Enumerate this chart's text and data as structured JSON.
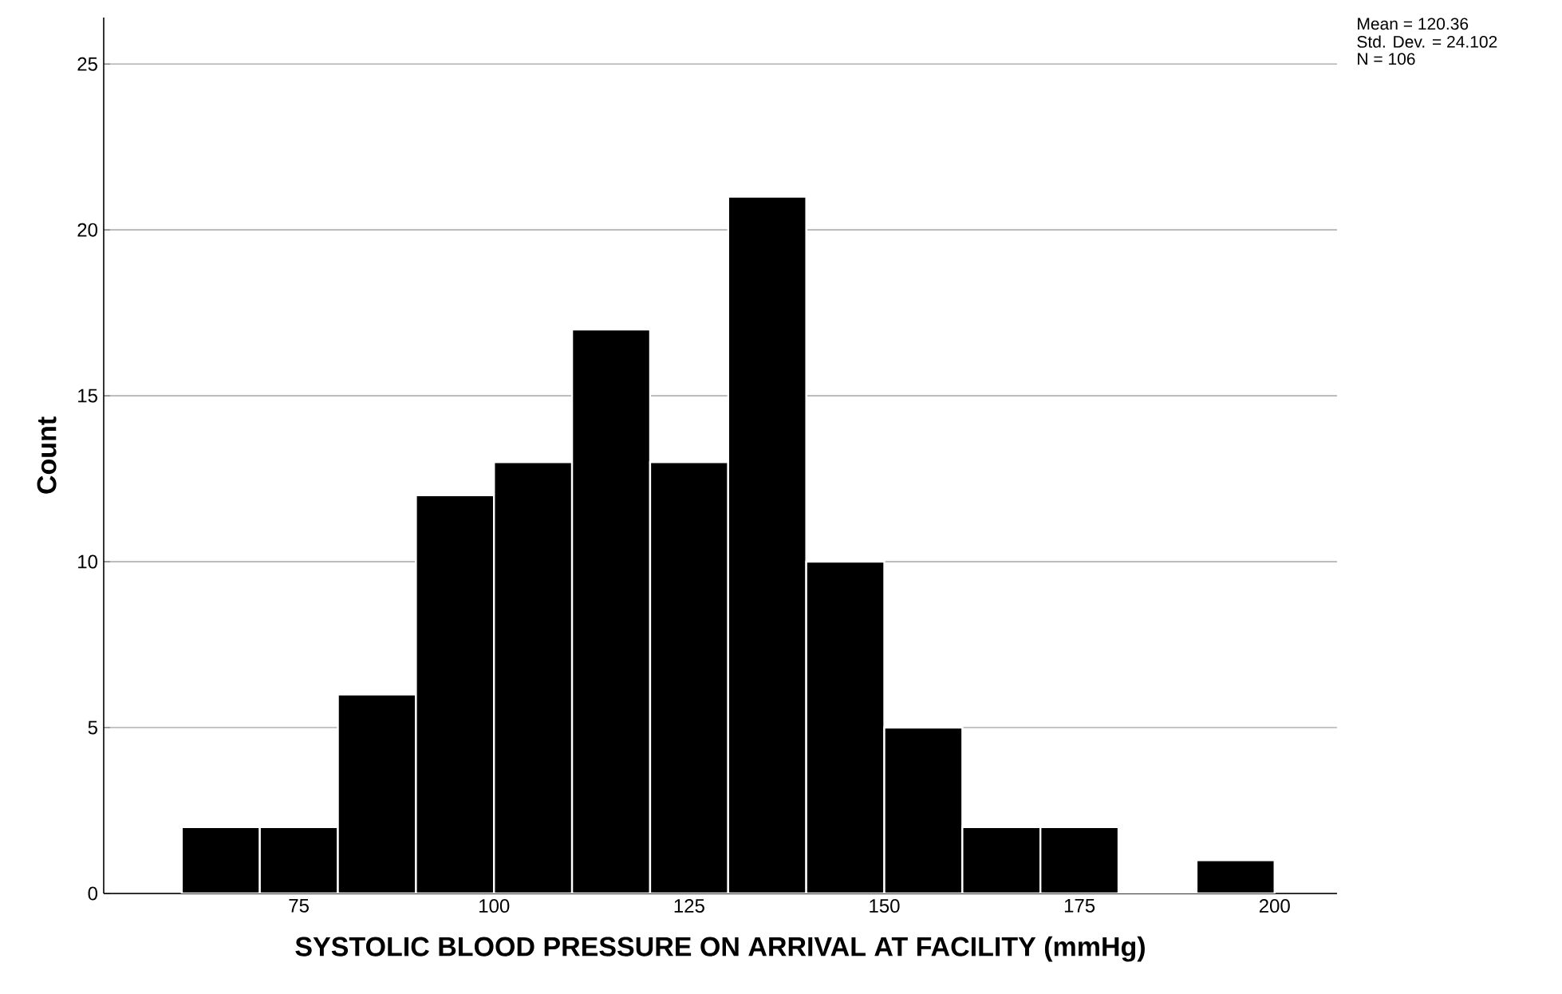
{
  "chart_data": {
    "type": "histogram",
    "xlabel": "SYSTOLIC BLOOD PRESSURE ON ARRIVAL AT FACILITY (mmHg)",
    "ylabel": "Count",
    "bins": [
      60,
      70,
      80,
      90,
      100,
      110,
      120,
      130,
      140,
      150,
      160,
      170,
      180,
      190,
      200
    ],
    "values": [
      2,
      2,
      6,
      12,
      13,
      17,
      13,
      21,
      10,
      5,
      2,
      2,
      0,
      1
    ],
    "color": "#000000",
    "xlim": [
      50,
      208
    ],
    "xticks": [
      75,
      100,
      125,
      150,
      175,
      200
    ],
    "ylim": [
      0,
      26.4
    ],
    "yticks": [
      0,
      5,
      10,
      15,
      20,
      25
    ],
    "grid": "y",
    "annotations": [
      "Mean = 120.36",
      "Std. Dev. = 24.102",
      "N = 106"
    ]
  }
}
